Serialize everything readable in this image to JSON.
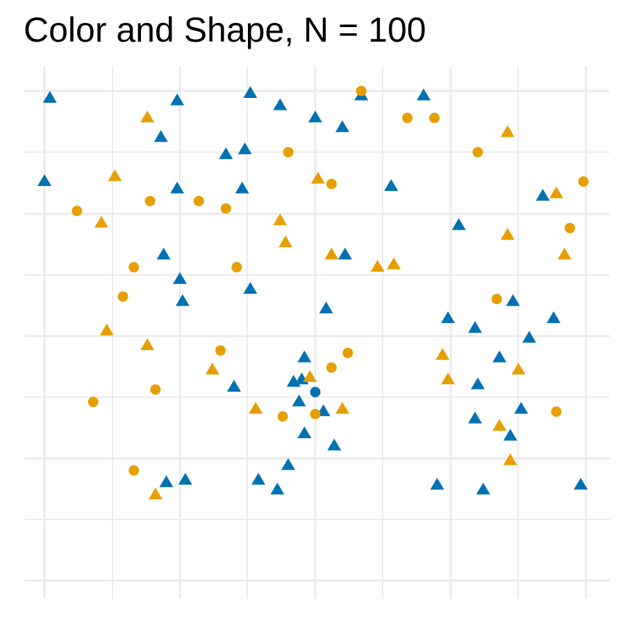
{
  "title": "Color and Shape, N = 100",
  "colors": {
    "blue": "#0072B2",
    "orange": "#E69F00",
    "grid": "#EBEBEB"
  },
  "chart_data": {
    "type": "scatter",
    "title": "Color and Shape, N = 100",
    "xlabel": "",
    "ylabel": "",
    "xlim": [
      -0.02,
      1.02
    ],
    "ylim": [
      -0.02,
      1.02
    ],
    "grid": true,
    "legend": "none",
    "points": [
      {
        "x": 0.01,
        "y": 0.985,
        "color": "blue",
        "shape": "triangle"
      },
      {
        "x": 0.245,
        "y": 0.98,
        "color": "blue",
        "shape": "triangle"
      },
      {
        "x": 0.38,
        "y": 0.995,
        "color": "blue",
        "shape": "triangle"
      },
      {
        "x": 0.435,
        "y": 0.97,
        "color": "blue",
        "shape": "triangle"
      },
      {
        "x": 0.585,
        "y": 0.99,
        "color": "blue",
        "shape": "triangle"
      },
      {
        "x": 0.7,
        "y": 0.99,
        "color": "blue",
        "shape": "triangle"
      },
      {
        "x": 0.55,
        "y": 0.925,
        "color": "blue",
        "shape": "triangle"
      },
      {
        "x": 0.215,
        "y": 0.905,
        "color": "blue",
        "shape": "triangle"
      },
      {
        "x": 0.0,
        "y": 0.815,
        "color": "blue",
        "shape": "triangle"
      },
      {
        "x": 0.335,
        "y": 0.87,
        "color": "blue",
        "shape": "triangle"
      },
      {
        "x": 0.37,
        "y": 0.88,
        "color": "blue",
        "shape": "triangle"
      },
      {
        "x": 0.5,
        "y": 0.945,
        "color": "blue",
        "shape": "triangle"
      },
      {
        "x": 0.245,
        "y": 0.8,
        "color": "blue",
        "shape": "triangle"
      },
      {
        "x": 0.365,
        "y": 0.8,
        "color": "blue",
        "shape": "triangle"
      },
      {
        "x": 0.64,
        "y": 0.805,
        "color": "blue",
        "shape": "triangle"
      },
      {
        "x": 0.92,
        "y": 0.785,
        "color": "blue",
        "shape": "triangle"
      },
      {
        "x": 0.765,
        "y": 0.725,
        "color": "blue",
        "shape": "triangle"
      },
      {
        "x": 0.22,
        "y": 0.665,
        "color": "blue",
        "shape": "triangle"
      },
      {
        "x": 0.555,
        "y": 0.665,
        "color": "blue",
        "shape": "triangle"
      },
      {
        "x": 0.25,
        "y": 0.615,
        "color": "blue",
        "shape": "triangle"
      },
      {
        "x": 0.38,
        "y": 0.595,
        "color": "blue",
        "shape": "triangle"
      },
      {
        "x": 0.255,
        "y": 0.57,
        "color": "blue",
        "shape": "triangle"
      },
      {
        "x": 0.865,
        "y": 0.57,
        "color": "blue",
        "shape": "triangle"
      },
      {
        "x": 0.52,
        "y": 0.555,
        "color": "blue",
        "shape": "triangle"
      },
      {
        "x": 0.745,
        "y": 0.535,
        "color": "blue",
        "shape": "triangle"
      },
      {
        "x": 0.94,
        "y": 0.535,
        "color": "blue",
        "shape": "triangle"
      },
      {
        "x": 0.795,
        "y": 0.515,
        "color": "blue",
        "shape": "triangle"
      },
      {
        "x": 0.895,
        "y": 0.495,
        "color": "blue",
        "shape": "triangle"
      },
      {
        "x": 0.48,
        "y": 0.455,
        "color": "blue",
        "shape": "triangle"
      },
      {
        "x": 0.84,
        "y": 0.455,
        "color": "blue",
        "shape": "triangle"
      },
      {
        "x": 0.475,
        "y": 0.41,
        "color": "blue",
        "shape": "triangle"
      },
      {
        "x": 0.46,
        "y": 0.405,
        "color": "blue",
        "shape": "triangle"
      },
      {
        "x": 0.35,
        "y": 0.395,
        "color": "blue",
        "shape": "triangle"
      },
      {
        "x": 0.8,
        "y": 0.4,
        "color": "blue",
        "shape": "triangle"
      },
      {
        "x": 0.5,
        "y": 0.385,
        "color": "blue",
        "shape": "circle"
      },
      {
        "x": 0.47,
        "y": 0.365,
        "color": "blue",
        "shape": "triangle"
      },
      {
        "x": 0.88,
        "y": 0.35,
        "color": "blue",
        "shape": "triangle"
      },
      {
        "x": 0.515,
        "y": 0.345,
        "color": "blue",
        "shape": "triangle"
      },
      {
        "x": 0.795,
        "y": 0.33,
        "color": "blue",
        "shape": "triangle"
      },
      {
        "x": 0.48,
        "y": 0.3,
        "color": "blue",
        "shape": "triangle"
      },
      {
        "x": 0.86,
        "y": 0.295,
        "color": "blue",
        "shape": "triangle"
      },
      {
        "x": 0.535,
        "y": 0.275,
        "color": "blue",
        "shape": "triangle"
      },
      {
        "x": 0.45,
        "y": 0.235,
        "color": "blue",
        "shape": "triangle"
      },
      {
        "x": 0.26,
        "y": 0.205,
        "color": "blue",
        "shape": "triangle"
      },
      {
        "x": 0.225,
        "y": 0.2,
        "color": "blue",
        "shape": "triangle"
      },
      {
        "x": 0.395,
        "y": 0.205,
        "color": "blue",
        "shape": "triangle"
      },
      {
        "x": 0.725,
        "y": 0.195,
        "color": "blue",
        "shape": "triangle"
      },
      {
        "x": 0.99,
        "y": 0.195,
        "color": "blue",
        "shape": "triangle"
      },
      {
        "x": 0.43,
        "y": 0.185,
        "color": "blue",
        "shape": "triangle"
      },
      {
        "x": 0.81,
        "y": 0.185,
        "color": "blue",
        "shape": "triangle"
      },
      {
        "x": 0.585,
        "y": 1.0,
        "color": "orange",
        "shape": "circle"
      },
      {
        "x": 0.19,
        "y": 0.945,
        "color": "orange",
        "shape": "triangle"
      },
      {
        "x": 0.67,
        "y": 0.945,
        "color": "orange",
        "shape": "circle"
      },
      {
        "x": 0.72,
        "y": 0.945,
        "color": "orange",
        "shape": "circle"
      },
      {
        "x": 0.855,
        "y": 0.915,
        "color": "orange",
        "shape": "triangle"
      },
      {
        "x": 0.45,
        "y": 0.875,
        "color": "orange",
        "shape": "circle"
      },
      {
        "x": 0.8,
        "y": 0.875,
        "color": "orange",
        "shape": "circle"
      },
      {
        "x": 0.13,
        "y": 0.825,
        "color": "orange",
        "shape": "triangle"
      },
      {
        "x": 0.505,
        "y": 0.82,
        "color": "orange",
        "shape": "triangle"
      },
      {
        "x": 0.53,
        "y": 0.81,
        "color": "orange",
        "shape": "circle"
      },
      {
        "x": 0.995,
        "y": 0.815,
        "color": "orange",
        "shape": "circle"
      },
      {
        "x": 0.945,
        "y": 0.79,
        "color": "orange",
        "shape": "triangle"
      },
      {
        "x": 0.195,
        "y": 0.775,
        "color": "orange",
        "shape": "circle"
      },
      {
        "x": 0.285,
        "y": 0.775,
        "color": "orange",
        "shape": "circle"
      },
      {
        "x": 0.335,
        "y": 0.76,
        "color": "orange",
        "shape": "circle"
      },
      {
        "x": 0.06,
        "y": 0.755,
        "color": "orange",
        "shape": "circle"
      },
      {
        "x": 0.105,
        "y": 0.73,
        "color": "orange",
        "shape": "triangle"
      },
      {
        "x": 0.435,
        "y": 0.735,
        "color": "orange",
        "shape": "triangle"
      },
      {
        "x": 0.97,
        "y": 0.72,
        "color": "orange",
        "shape": "circle"
      },
      {
        "x": 0.855,
        "y": 0.705,
        "color": "orange",
        "shape": "triangle"
      },
      {
        "x": 0.445,
        "y": 0.69,
        "color": "orange",
        "shape": "triangle"
      },
      {
        "x": 0.96,
        "y": 0.665,
        "color": "orange",
        "shape": "triangle"
      },
      {
        "x": 0.53,
        "y": 0.665,
        "color": "orange",
        "shape": "triangle"
      },
      {
        "x": 0.645,
        "y": 0.645,
        "color": "orange",
        "shape": "triangle"
      },
      {
        "x": 0.615,
        "y": 0.64,
        "color": "orange",
        "shape": "triangle"
      },
      {
        "x": 0.165,
        "y": 0.64,
        "color": "orange",
        "shape": "circle"
      },
      {
        "x": 0.355,
        "y": 0.64,
        "color": "orange",
        "shape": "circle"
      },
      {
        "x": 0.145,
        "y": 0.58,
        "color": "orange",
        "shape": "circle"
      },
      {
        "x": 0.835,
        "y": 0.575,
        "color": "orange",
        "shape": "circle"
      },
      {
        "x": 0.115,
        "y": 0.51,
        "color": "orange",
        "shape": "triangle"
      },
      {
        "x": 0.19,
        "y": 0.48,
        "color": "orange",
        "shape": "triangle"
      },
      {
        "x": 0.325,
        "y": 0.47,
        "color": "orange",
        "shape": "circle"
      },
      {
        "x": 0.56,
        "y": 0.465,
        "color": "orange",
        "shape": "circle"
      },
      {
        "x": 0.735,
        "y": 0.46,
        "color": "orange",
        "shape": "triangle"
      },
      {
        "x": 0.31,
        "y": 0.43,
        "color": "orange",
        "shape": "triangle"
      },
      {
        "x": 0.49,
        "y": 0.415,
        "color": "orange",
        "shape": "triangle"
      },
      {
        "x": 0.53,
        "y": 0.435,
        "color": "orange",
        "shape": "circle"
      },
      {
        "x": 0.745,
        "y": 0.41,
        "color": "orange",
        "shape": "triangle"
      },
      {
        "x": 0.875,
        "y": 0.43,
        "color": "orange",
        "shape": "triangle"
      },
      {
        "x": 0.205,
        "y": 0.39,
        "color": "orange",
        "shape": "circle"
      },
      {
        "x": 0.09,
        "y": 0.365,
        "color": "orange",
        "shape": "circle"
      },
      {
        "x": 0.39,
        "y": 0.35,
        "color": "orange",
        "shape": "triangle"
      },
      {
        "x": 0.55,
        "y": 0.35,
        "color": "orange",
        "shape": "triangle"
      },
      {
        "x": 0.5,
        "y": 0.34,
        "color": "orange",
        "shape": "circle"
      },
      {
        "x": 0.44,
        "y": 0.335,
        "color": "orange",
        "shape": "circle"
      },
      {
        "x": 0.945,
        "y": 0.345,
        "color": "orange",
        "shape": "circle"
      },
      {
        "x": 0.84,
        "y": 0.315,
        "color": "orange",
        "shape": "triangle"
      },
      {
        "x": 0.86,
        "y": 0.245,
        "color": "orange",
        "shape": "triangle"
      },
      {
        "x": 0.165,
        "y": 0.225,
        "color": "orange",
        "shape": "circle"
      },
      {
        "x": 0.205,
        "y": 0.175,
        "color": "orange",
        "shape": "triangle"
      }
    ]
  }
}
